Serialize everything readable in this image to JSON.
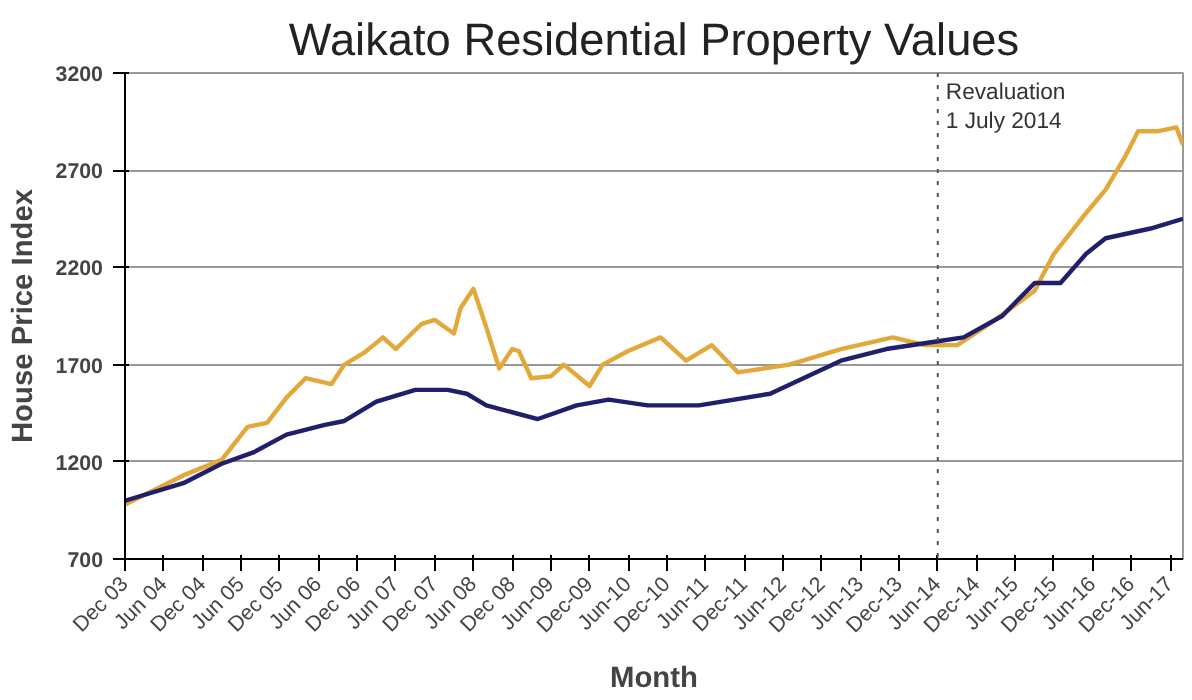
{
  "chart_data": {
    "type": "line",
    "title": "Waikato Residential Property Values",
    "xlabel": "Month",
    "ylabel": "House Price Index",
    "xlim": [
      "2003-12",
      "2017-08"
    ],
    "ylim": [
      700,
      3200
    ],
    "yticks": [
      700,
      1200,
      1700,
      2200,
      2700,
      3200
    ],
    "xticks": [
      {
        "value": "2003-12",
        "label": "Dec 03"
      },
      {
        "value": "2004-06",
        "label": "Jun 04"
      },
      {
        "value": "2004-12",
        "label": "Dec 04"
      },
      {
        "value": "2005-06",
        "label": "Jun 05"
      },
      {
        "value": "2005-12",
        "label": "Dec 05"
      },
      {
        "value": "2006-06",
        "label": "Jun 06"
      },
      {
        "value": "2006-12",
        "label": "Dec 06"
      },
      {
        "value": "2007-06",
        "label": "Jun 07"
      },
      {
        "value": "2007-12",
        "label": "Dec 07"
      },
      {
        "value": "2008-06",
        "label": "Jun 08"
      },
      {
        "value": "2008-12",
        "label": "Dec 08"
      },
      {
        "value": "2009-06",
        "label": "Jun-09"
      },
      {
        "value": "2009-12",
        "label": "Dec-09"
      },
      {
        "value": "2010-06",
        "label": "Jun-10"
      },
      {
        "value": "2010-12",
        "label": "Dec-10"
      },
      {
        "value": "2011-06",
        "label": "Jun-11"
      },
      {
        "value": "2011-12",
        "label": "Dec-11"
      },
      {
        "value": "2012-06",
        "label": "Jun-12"
      },
      {
        "value": "2012-12",
        "label": "Dec-12"
      },
      {
        "value": "2013-06",
        "label": "Jun-13"
      },
      {
        "value": "2013-12",
        "label": "Dec-13"
      },
      {
        "value": "2014-06",
        "label": "Jun-14"
      },
      {
        "value": "2014-12",
        "label": "Dec-14"
      },
      {
        "value": "2015-06",
        "label": "Jun-15"
      },
      {
        "value": "2015-12",
        "label": "Dec-15"
      },
      {
        "value": "2016-06",
        "label": "Jun-16"
      },
      {
        "value": "2016-12",
        "label": "Dec-16"
      },
      {
        "value": "2017-06",
        "label": "Jun-17"
      }
    ],
    "grid": "y",
    "line_style": "solid",
    "ref_lines": [
      {
        "axis": "x",
        "value": "2014-06",
        "label": "Revaluation\n1 July 2014",
        "color": "#555555",
        "line_style": "dotted"
      }
    ],
    "series": [
      {
        "color": "#e3a83a",
        "x": [
          "2003-12",
          "2004-09",
          "2005-03",
          "2005-07",
          "2005-10",
          "2006-01",
          "2006-04",
          "2006-08",
          "2006-10",
          "2007-01",
          "2007-04",
          "2007-06",
          "2007-10",
          "2007-12",
          "2008-03",
          "2008-04",
          "2008-06",
          "2008-08",
          "2008-10",
          "2008-12",
          "2009-01",
          "2009-03",
          "2009-06",
          "2009-08",
          "2009-12",
          "2010-02",
          "2010-06",
          "2010-11",
          "2011-03",
          "2011-07",
          "2011-11",
          "2012-07",
          "2013-03",
          "2013-11",
          "2014-04",
          "2014-09",
          "2015-02",
          "2015-09",
          "2015-12",
          "2016-05",
          "2016-08",
          "2016-11",
          "2017-01",
          "2017-04",
          "2017-07",
          "2017-08"
        ],
        "values": [
          980,
          1130,
          1210,
          1380,
          1400,
          1530,
          1630,
          1600,
          1700,
          1760,
          1840,
          1780,
          1910,
          1930,
          1860,
          1990,
          2090,
          1890,
          1680,
          1780,
          1770,
          1630,
          1640,
          1700,
          1590,
          1700,
          1770,
          1840,
          1720,
          1800,
          1660,
          1700,
          1780,
          1840,
          1800,
          1800,
          1910,
          2080,
          2270,
          2480,
          2600,
          2770,
          2900,
          2900,
          2920,
          2830
        ]
      },
      {
        "color": "#1f1f6b",
        "x": [
          "2003-12",
          "2004-09",
          "2005-03",
          "2005-08",
          "2006-01",
          "2006-07",
          "2006-10",
          "2007-03",
          "2007-09",
          "2008-02",
          "2008-05",
          "2008-08",
          "2009-04",
          "2009-10",
          "2010-03",
          "2010-09",
          "2011-05",
          "2012-04",
          "2013-03",
          "2013-10",
          "2014-06",
          "2014-10",
          "2015-04",
          "2015-09",
          "2016-01",
          "2016-05",
          "2016-08",
          "2017-03",
          "2017-08"
        ],
        "values": [
          1000,
          1090,
          1190,
          1250,
          1340,
          1390,
          1410,
          1510,
          1570,
          1570,
          1550,
          1490,
          1420,
          1490,
          1520,
          1490,
          1490,
          1550,
          1720,
          1780,
          1820,
          1840,
          1950,
          2120,
          2120,
          2270,
          2350,
          2400,
          2450
        ]
      }
    ]
  }
}
